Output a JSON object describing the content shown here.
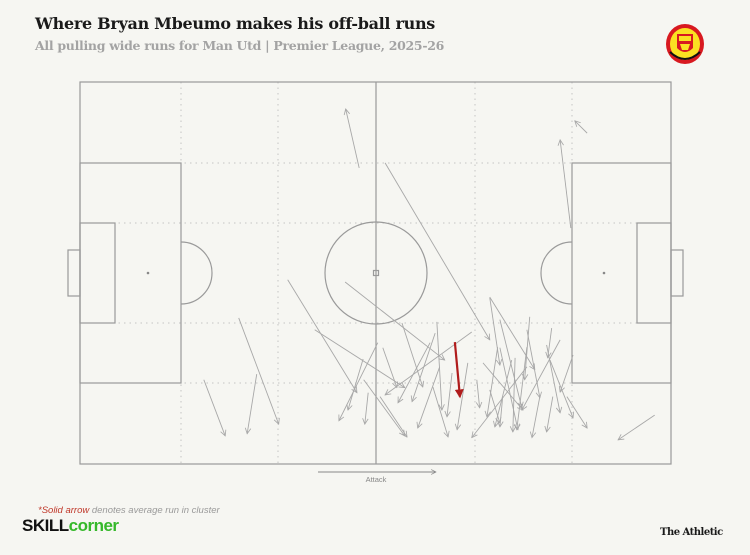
{
  "header": {
    "title": "Where Bryan Mbeumo makes his off-ball runs",
    "subtitle": "All pulling wide runs for Man Utd | Premier League, 2025-26",
    "crest_icon": "manchester-united-crest"
  },
  "footer": {
    "footnote_accent": "*Solid arrow",
    "footnote_rest": " denotes average run in cluster",
    "brand_left_a": "SKILL",
    "brand_left_b": "corner",
    "brand_right": "The Athletic"
  },
  "colors": {
    "background": "#f6f6f2",
    "run": "#a8a8a8",
    "average_run": "#b01c1c",
    "pitch_lines": "#9a9a9a",
    "footnote_accent": "#c0392b",
    "skillcorner_green": "#35b82a"
  },
  "chart_data": {
    "type": "pitch-arrows",
    "title": "Where Bryan Mbeumo makes his off-ball runs",
    "subtitle": "All pulling wide runs for Man Utd | Premier League, 2025-26",
    "direction_label": "Attack",
    "pitch_units": "metres",
    "pitch_length": 105,
    "pitch_width": 68,
    "runs": [
      [
        22.0,
        53.0,
        25.8,
        63.0
      ],
      [
        31.4,
        52.0,
        29.7,
        62.6
      ],
      [
        28.2,
        42.0,
        35.3,
        60.9
      ],
      [
        36.9,
        35.2,
        49.2,
        55.3
      ],
      [
        41.7,
        44.1,
        57.7,
        54.4
      ],
      [
        47.1,
        35.6,
        64.8,
        49.5
      ],
      [
        52.9,
        46.4,
        46.0,
        60.3
      ],
      [
        50.3,
        49.3,
        47.6,
        58.4
      ],
      [
        51.2,
        55.3,
        50.6,
        60.9
      ],
      [
        50.4,
        53.0,
        57.7,
        63.0
      ],
      [
        54.2,
        14.4,
        72.8,
        45.9
      ],
      [
        72.8,
        38.3,
        80.8,
        51.2
      ],
      [
        53.8,
        47.3,
        56.3,
        54.4
      ],
      [
        57.2,
        42.9,
        60.9,
        54.3
      ],
      [
        63.4,
        42.7,
        64.3,
        58.4
      ],
      [
        62.2,
        46.4,
        56.5,
        57.1
      ],
      [
        63.1,
        44.7,
        59.0,
        56.9
      ],
      [
        69.6,
        44.5,
        54.2,
        55.7
      ],
      [
        53.3,
        56.0,
        58.1,
        63.2
      ],
      [
        63.9,
        50.7,
        60.0,
        61.6
      ],
      [
        66.1,
        51.8,
        65.2,
        59.6
      ],
      [
        68.9,
        50.0,
        67.0,
        61.9
      ],
      [
        62.7,
        54.3,
        65.4,
        63.2
      ],
      [
        70.5,
        53.0,
        71.0,
        58.0
      ],
      [
        72.8,
        38.4,
        74.6,
        50.4
      ],
      [
        74.2,
        47.2,
        72.3,
        59.6
      ],
      [
        76.7,
        49.5,
        73.7,
        61.4
      ],
      [
        79.4,
        47.2,
        77.6,
        61.9
      ],
      [
        71.6,
        50.0,
        78.7,
        58.4
      ],
      [
        79.4,
        50.7,
        69.6,
        63.3
      ],
      [
        72.8,
        54.8,
        74.6,
        60.7
      ],
      [
        79.9,
        41.8,
        79.0,
        53.0
      ],
      [
        79.4,
        44.1,
        81.7,
        56.2
      ],
      [
        83.8,
        43.8,
        83.1,
        49.1
      ],
      [
        85.3,
        45.9,
        78.5,
        58.4
      ],
      [
        82.9,
        46.8,
        85.3,
        58.9
      ],
      [
        87.6,
        48.6,
        85.3,
        55.2
      ],
      [
        83.5,
        49.5,
        87.6,
        59.8
      ],
      [
        74.6,
        42.3,
        78.5,
        58.0
      ],
      [
        77.3,
        49.1,
        76.9,
        62.3
      ],
      [
        81.7,
        56.0,
        80.3,
        63.3
      ],
      [
        84.0,
        56.0,
        82.9,
        62.3
      ],
      [
        86.5,
        56.0,
        90.1,
        61.6
      ],
      [
        102.1,
        59.3,
        95.6,
        63.7
      ],
      [
        74.6,
        47.3,
        77.8,
        61.9
      ],
      [
        75.1,
        56.0,
        74.6,
        61.4
      ],
      [
        49.6,
        15.3,
        47.2,
        4.8
      ],
      [
        90.1,
        9.1,
        87.9,
        6.9
      ],
      [
        87.2,
        26.0,
        85.3,
        10.3
      ]
    ],
    "average_run": [
      66.6,
      46.3,
      67.5,
      56.0
    ]
  }
}
